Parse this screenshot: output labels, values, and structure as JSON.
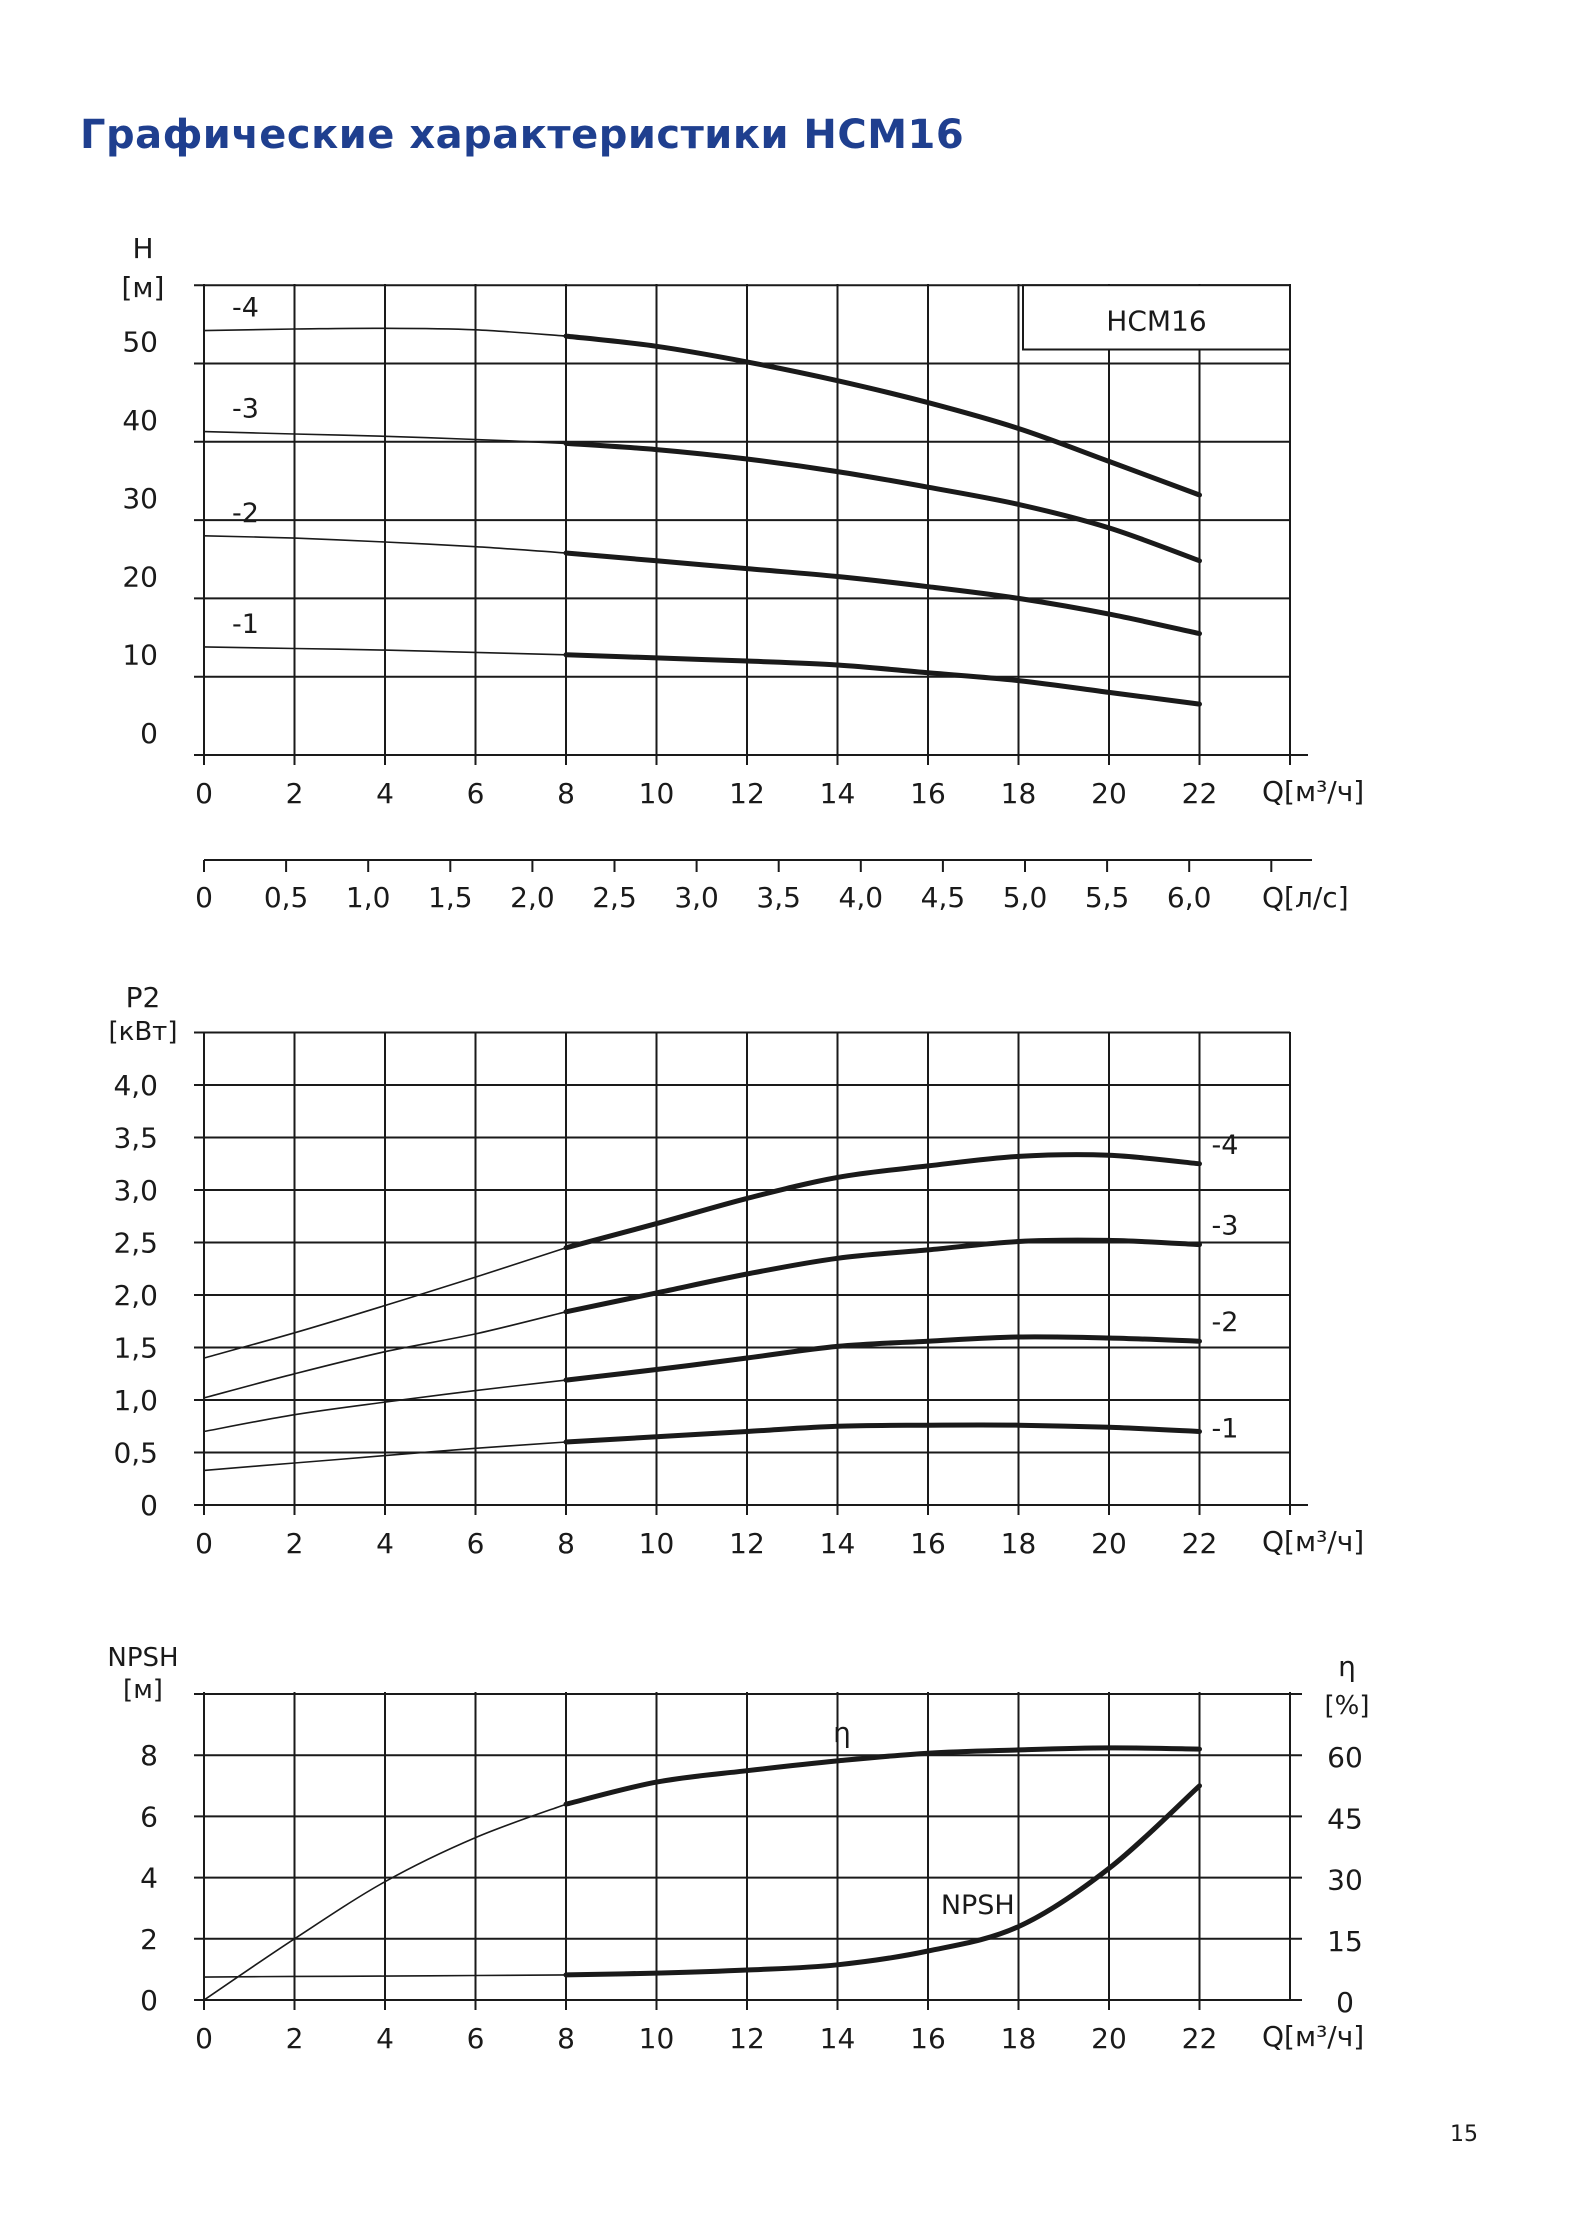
{
  "page": {
    "title": "Графические характеристики НСМ16",
    "title_color": "#1f3f8f",
    "page_number": "15"
  },
  "chart_data": [
    {
      "id": "head",
      "type": "line",
      "box_label": "НСМ16",
      "ylabel": "Н",
      "yunit": "[м]",
      "xlabel": "Q[м³/ч]",
      "x2label": "Q[л/с]",
      "xlim": [
        0,
        24
      ],
      "ylim": [
        0,
        60
      ],
      "x_ticks": [
        "0",
        "2",
        "4",
        "6",
        "8",
        "10",
        "12",
        "14",
        "16",
        "18",
        "20",
        "22"
      ],
      "y_ticks": [
        "0",
        "10",
        "20",
        "30",
        "40",
        "50"
      ],
      "x2_ticks": [
        "0",
        "0,5",
        "1,0",
        "1,5",
        "2,0",
        "2,5",
        "3,0",
        "3,5",
        "4,0",
        "4,5",
        "5,0",
        "5,5",
        "6,0"
      ],
      "series": [
        {
          "name": "-4",
          "x": [
            0,
            2,
            4,
            6,
            8,
            10,
            12,
            14,
            16,
            18,
            20,
            22
          ],
          "y": [
            54.2,
            54.4,
            54.5,
            54.3,
            53.5,
            52.2,
            50.2,
            47.8,
            45,
            41.7,
            37.5,
            33.2
          ]
        },
        {
          "name": "-3",
          "x": [
            0,
            2,
            4,
            6,
            8,
            10,
            12,
            14,
            16,
            18,
            20,
            22
          ],
          "y": [
            41.3,
            41,
            40.7,
            40.3,
            39.8,
            39,
            37.8,
            36.2,
            34.2,
            32,
            29,
            24.8
          ]
        },
        {
          "name": "-2",
          "x": [
            0,
            2,
            4,
            6,
            8,
            10,
            12,
            14,
            16,
            18,
            20,
            22
          ],
          "y": [
            28,
            27.7,
            27.2,
            26.6,
            25.8,
            24.8,
            23.8,
            22.8,
            21.5,
            20,
            18,
            15.5
          ]
        },
        {
          "name": "-1",
          "x": [
            0,
            2,
            4,
            6,
            8,
            10,
            12,
            14,
            16,
            18,
            20,
            22
          ],
          "y": [
            13.8,
            13.6,
            13.4,
            13.1,
            12.8,
            12.4,
            12,
            11.5,
            10.5,
            9.5,
            8,
            6.5
          ]
        }
      ],
      "bold_from_x": 8
    },
    {
      "id": "power",
      "type": "line",
      "ylabel": "P2",
      "yunit": "[кВт]",
      "xlabel": "Q[м³/ч]",
      "xlim": [
        0,
        24
      ],
      "ylim": [
        0,
        4.5
      ],
      "x_ticks": [
        "0",
        "2",
        "4",
        "6",
        "8",
        "10",
        "12",
        "14",
        "16",
        "18",
        "20",
        "22"
      ],
      "y_ticks": [
        "0",
        "0,5",
        "1,0",
        "1,5",
        "2,0",
        "2,5",
        "3,0",
        "3,5",
        "4,0"
      ],
      "series": [
        {
          "name": "-4",
          "x": [
            0,
            2,
            4,
            6,
            8,
            10,
            12,
            14,
            16,
            18,
            20,
            22
          ],
          "y": [
            1.4,
            1.64,
            1.9,
            2.17,
            2.45,
            2.68,
            2.92,
            3.12,
            3.23,
            3.32,
            3.33,
            3.25
          ]
        },
        {
          "name": "-3",
          "x": [
            0,
            2,
            4,
            6,
            8,
            10,
            12,
            14,
            16,
            18,
            20,
            22
          ],
          "y": [
            1.02,
            1.25,
            1.46,
            1.63,
            1.84,
            2.02,
            2.2,
            2.35,
            2.43,
            2.51,
            2.52,
            2.48
          ]
        },
        {
          "name": "-2",
          "x": [
            0,
            2,
            4,
            6,
            8,
            10,
            12,
            14,
            16,
            18,
            20,
            22
          ],
          "y": [
            0.7,
            0.86,
            0.98,
            1.09,
            1.19,
            1.29,
            1.4,
            1.51,
            1.56,
            1.6,
            1.59,
            1.56
          ]
        },
        {
          "name": "-1",
          "x": [
            0,
            2,
            4,
            6,
            8,
            10,
            12,
            14,
            16,
            18,
            20,
            22
          ],
          "y": [
            0.33,
            0.4,
            0.47,
            0.54,
            0.6,
            0.65,
            0.7,
            0.75,
            0.76,
            0.76,
            0.74,
            0.7
          ]
        }
      ],
      "bold_from_x": 8
    },
    {
      "id": "npsh",
      "type": "line",
      "ylabel": "NPSH",
      "yunit": "[м]",
      "y2label": "η",
      "y2unit": "[%]",
      "xlabel": "Q[м³/ч]",
      "xlim": [
        0,
        24
      ],
      "ylim": [
        0,
        10
      ],
      "y2lim": [
        0,
        75
      ],
      "x_ticks": [
        "0",
        "2",
        "4",
        "6",
        "8",
        "10",
        "12",
        "14",
        "16",
        "18",
        "20",
        "22"
      ],
      "y_ticks": [
        "0",
        "2",
        "4",
        "6",
        "8"
      ],
      "y2_ticks": [
        "0",
        "15",
        "30",
        "45",
        "60"
      ],
      "series": [
        {
          "name": "η",
          "axis": "right",
          "x": [
            0,
            2,
            4,
            6,
            8,
            10,
            12,
            14,
            16,
            18,
            20,
            22
          ],
          "y": [
            0,
            15,
            29,
            39.8,
            48,
            53.4,
            56.2,
            58.6,
            60.5,
            61.3,
            61.8,
            61.5
          ]
        },
        {
          "name": "NPSH",
          "axis": "left",
          "x": [
            0,
            2,
            4,
            6,
            8,
            10,
            12,
            14,
            16,
            18,
            20,
            22
          ],
          "y": [
            0.75,
            0.77,
            0.78,
            0.8,
            0.82,
            0.88,
            0.98,
            1.15,
            1.6,
            2.4,
            4.3,
            7
          ]
        }
      ],
      "bold_from_x": 8
    }
  ]
}
